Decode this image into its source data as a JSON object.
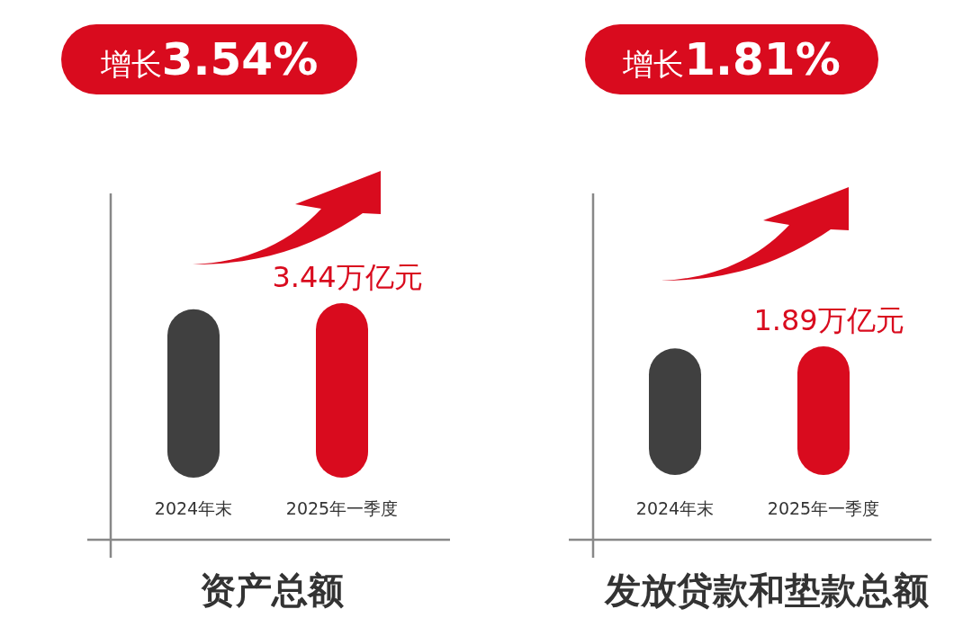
{
  "chart_data": [
    {
      "type": "bar",
      "title": "资产总额",
      "categories": [
        "2024年末",
        "2025年一季度"
      ],
      "values": [
        3.32,
        3.44
      ],
      "colors": [
        "#404040",
        "#d90b1e"
      ],
      "value_labels": [
        null,
        "3.44万亿元"
      ],
      "annotations": [
        "增长**3.54%**"
      ]
    },
    {
      "type": "bar",
      "title": "发放贷款和垫款总额",
      "categories": [
        "2024年末",
        "2025年一季度"
      ],
      "values": [
        1.86,
        1.89
      ],
      "colors": [
        "#404040",
        "#d90b1e"
      ],
      "value_labels": [
        null,
        "1.89万亿元"
      ],
      "annotations": [
        "增长**1.81%**"
      ]
    }
  ]
}
